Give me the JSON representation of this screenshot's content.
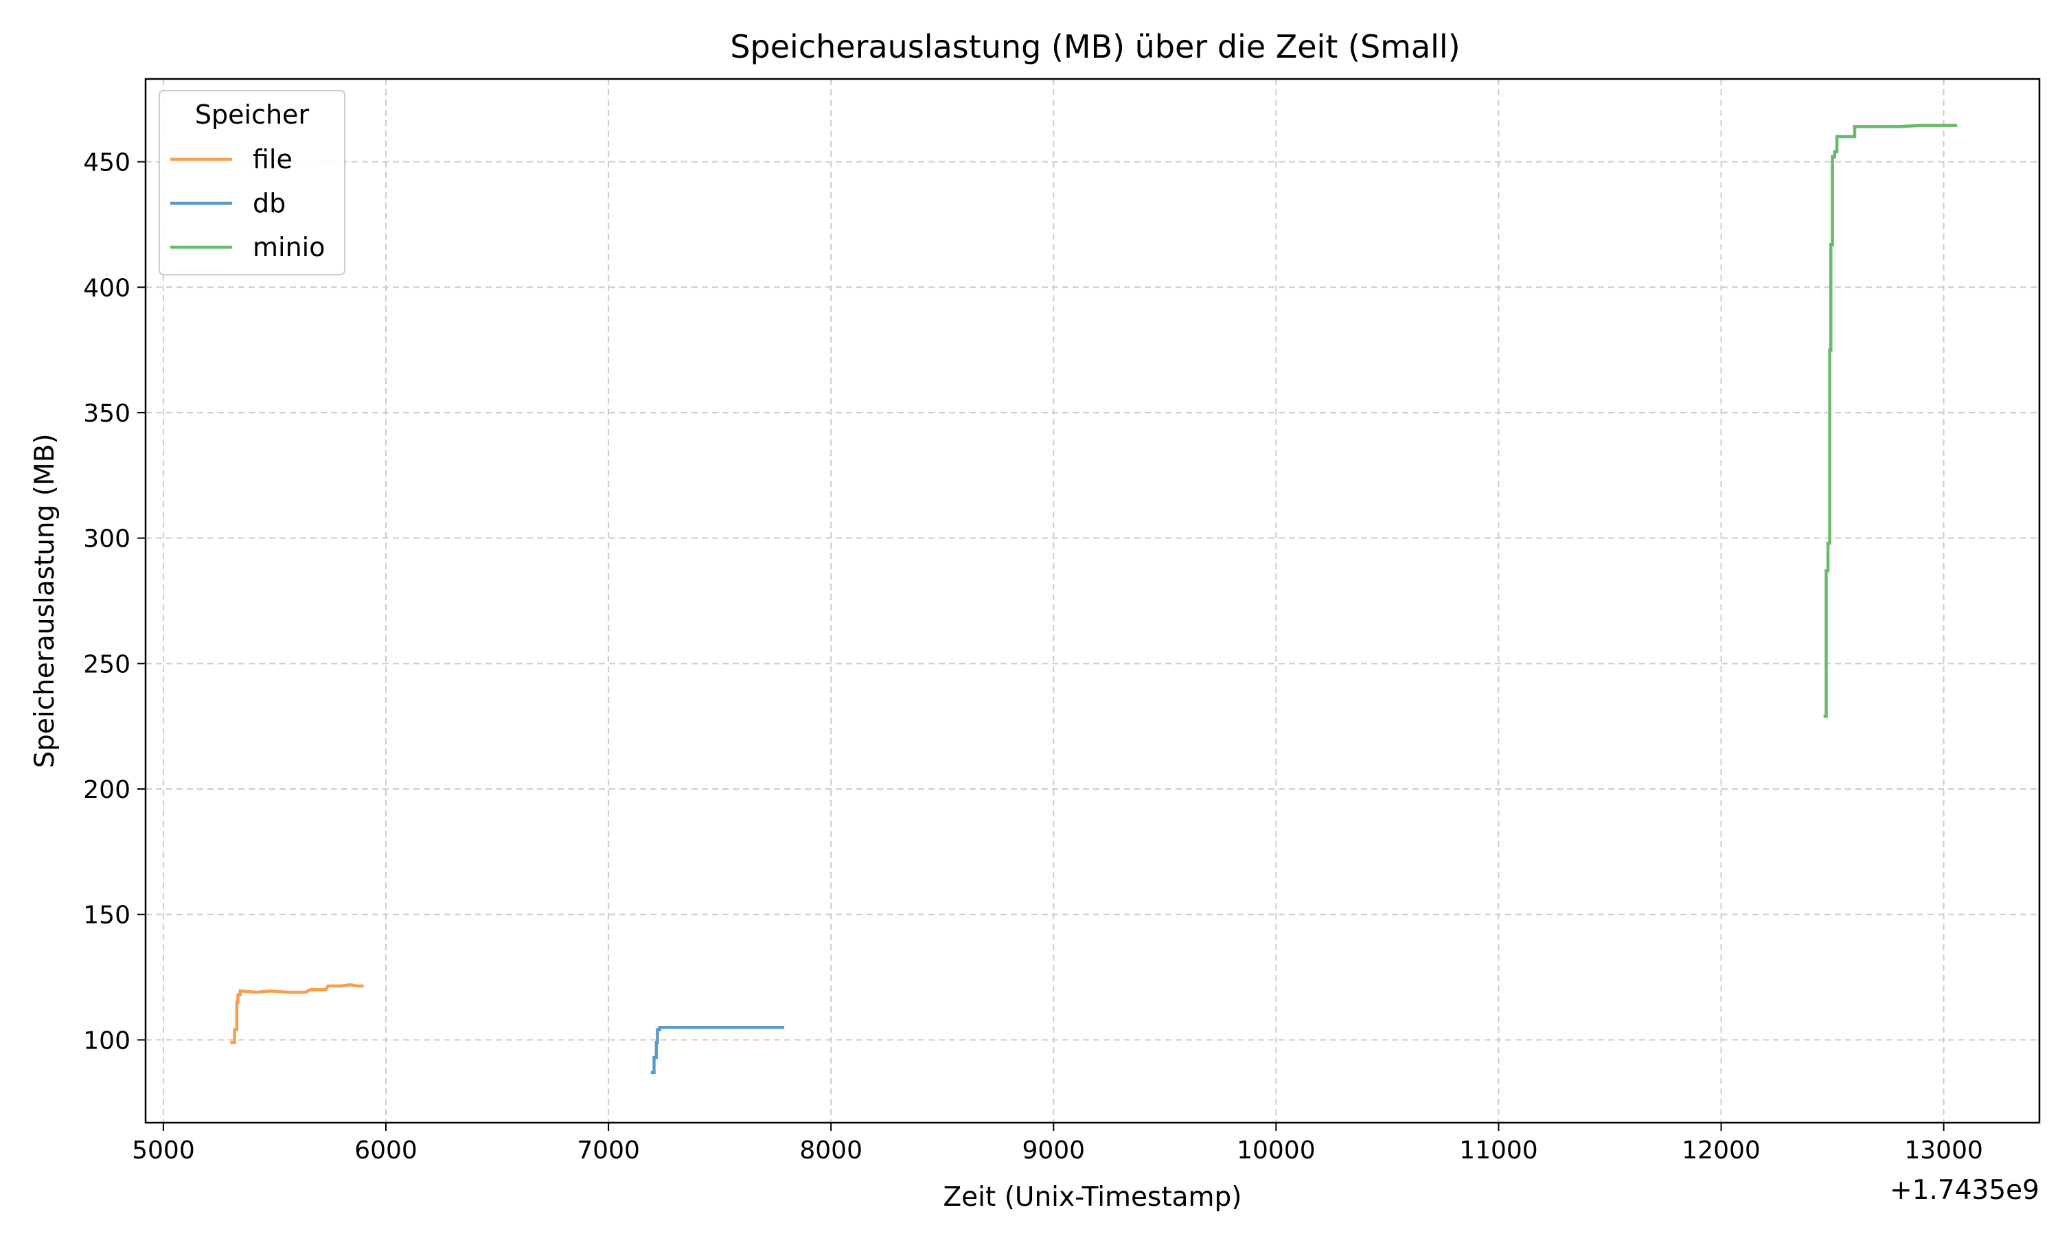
{
  "chart_data": {
    "type": "line",
    "title": "Speicherauslastung (MB) über die Zeit (Small)",
    "xlabel": "Zeit (Unix-Timestamp)",
    "ylabel": "Speicherauslastung (MB)",
    "x_offset_label": "+1.7435e9",
    "xlim": [
      4920,
      13430
    ],
    "ylim": [
      67,
      483
    ],
    "x_ticks": [
      5000,
      6000,
      7000,
      8000,
      9000,
      10000,
      11000,
      12000,
      13000
    ],
    "x_tick_labels": [
      "5000",
      "6000",
      "7000",
      "8000",
      "9000",
      "10000",
      "11000",
      "12000",
      "13000"
    ],
    "y_ticks": [
      100,
      150,
      200,
      250,
      300,
      350,
      400,
      450
    ],
    "y_tick_labels": [
      "100",
      "150",
      "200",
      "250",
      "300",
      "350",
      "400",
      "450"
    ],
    "grid": true,
    "legend": {
      "title": "Speicher",
      "placement": "top-left"
    },
    "series": [
      {
        "name": "file",
        "color": "#f5a04e",
        "x": [
          5300,
          5320,
          5320,
          5330,
          5330,
          5335,
          5335,
          5345,
          5345,
          5420,
          5480,
          5560,
          5640,
          5660,
          5700,
          5730,
          5740,
          5740,
          5800,
          5840,
          5870,
          5900
        ],
        "y": [
          99,
          99,
          104,
          104,
          115,
          115,
          118,
          118,
          119.5,
          119,
          119.5,
          119,
          119,
          120,
          120,
          120,
          121.5,
          121.5,
          121.5,
          122,
          121.5,
          121.5
        ]
      },
      {
        "name": "db",
        "color": "#5e9ac7",
        "x": [
          7190,
          7205,
          7205,
          7215,
          7215,
          7220,
          7220,
          7230,
          7230,
          7400,
          7600,
          7790
        ],
        "y": [
          87,
          87,
          93,
          93,
          99,
          99,
          104,
          104,
          105,
          105,
          105,
          105
        ]
      },
      {
        "name": "minio",
        "color": "#66bb6a",
        "x": [
          12460,
          12472,
          12472,
          12480,
          12480,
          12488,
          12488,
          12493,
          12493,
          12500,
          12500,
          12510,
          12510,
          12520,
          12520,
          12550,
          12550,
          12600,
          12600,
          12800,
          12900,
          13000,
          13060
        ],
        "y": [
          229,
          229,
          287,
          287,
          298,
          298,
          375,
          375,
          417,
          417,
          452,
          452,
          454,
          454,
          460,
          460,
          460,
          460,
          464,
          464,
          464.5,
          464.5,
          464.5
        ]
      }
    ]
  }
}
